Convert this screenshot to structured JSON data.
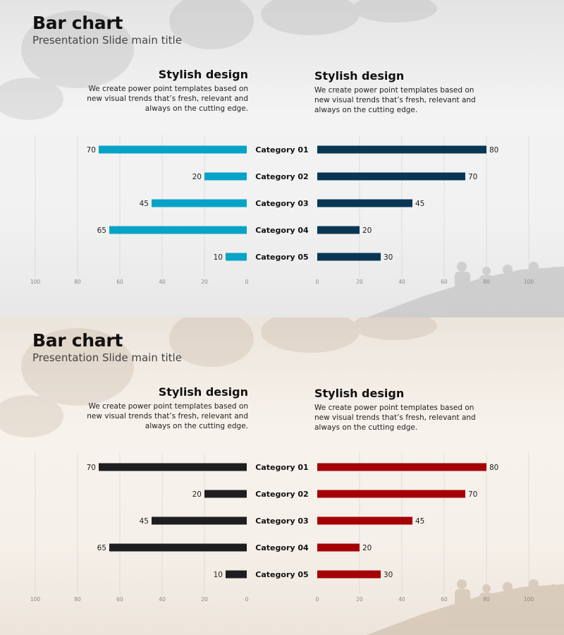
{
  "slides": [
    {
      "title": "Bar chart",
      "subtitle": "Presentation Slide main title",
      "left_block": {
        "heading": "Stylish design",
        "text": "We create power point templates based on new visual trends that’s fresh, relevant and always on the cutting edge."
      },
      "right_block": {
        "heading": "Stylish design",
        "text": "We create power point templates based on new visual trends that’s fresh, relevant and always on the cutting edge."
      },
      "colors": {
        "left_bars": "#06a3c8",
        "right_bars": "#073754"
      }
    },
    {
      "title": "Bar chart",
      "subtitle": "Presentation Slide main title",
      "left_block": {
        "heading": "Stylish design",
        "text": "We create power point templates based on new visual trends that’s fresh, relevant and always on the cutting edge."
      },
      "right_block": {
        "heading": "Stylish design",
        "text": "We create power point templates based on new visual trends that’s fresh, relevant and always on the cutting edge."
      },
      "colors": {
        "left_bars": "#1e1e20",
        "right_bars": "#a50005"
      }
    }
  ],
  "chart_data": [
    {
      "type": "bar",
      "orientation": "horizontal-butterfly",
      "categories": [
        "Category 01",
        "Category 02",
        "Category 03",
        "Category 04",
        "Category 05"
      ],
      "series": [
        {
          "values": [
            70,
            20,
            45,
            65,
            10
          ],
          "direction": "left",
          "color": "#06a3c8"
        },
        {
          "values": [
            80,
            70,
            45,
            20,
            30
          ],
          "direction": "right",
          "color": "#073754"
        }
      ],
      "left_ticks": [
        "100",
        "80",
        "60",
        "40",
        "20",
        "0"
      ],
      "right_ticks": [
        "0",
        "20",
        "40",
        "60",
        "80",
        "100"
      ],
      "xlim": [
        0,
        100
      ],
      "grid": true
    },
    {
      "type": "bar",
      "orientation": "horizontal-butterfly",
      "categories": [
        "Category 01",
        "Category 02",
        "Category 03",
        "Category 04",
        "Category 05"
      ],
      "series": [
        {
          "values": [
            70,
            20,
            45,
            65,
            10
          ],
          "direction": "left",
          "color": "#1e1e20"
        },
        {
          "values": [
            80,
            70,
            45,
            20,
            30
          ],
          "direction": "right",
          "color": "#a50005"
        }
      ],
      "left_ticks": [
        "100",
        "80",
        "60",
        "40",
        "20",
        "0"
      ],
      "right_ticks": [
        "0",
        "20",
        "40",
        "60",
        "80",
        "100"
      ],
      "xlim": [
        0,
        100
      ],
      "grid": true
    }
  ]
}
